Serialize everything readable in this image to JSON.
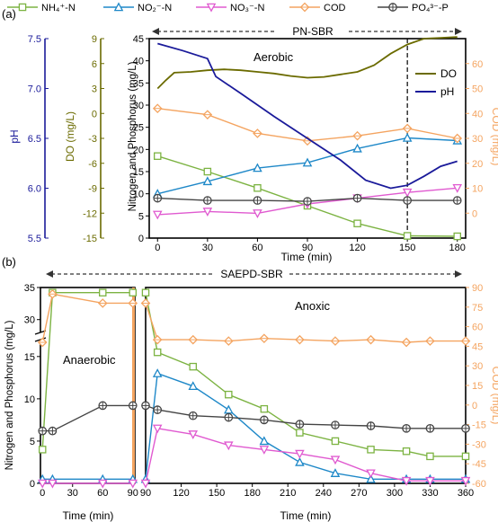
{
  "legend": {
    "items": [
      {
        "label": "NH₄⁺-N",
        "color": "#7cb342",
        "marker": "square"
      },
      {
        "label": "NO₂⁻-N",
        "color": "#1e88c8",
        "marker": "triangle-up"
      },
      {
        "label": "NO₃⁻-N",
        "color": "#e05ad0",
        "marker": "triangle-down"
      },
      {
        "label": "COD",
        "color": "#f4a460",
        "marker": "diamond"
      },
      {
        "label": "PO₄³⁻-P",
        "color": "#444444",
        "marker": "circle-cross"
      }
    ]
  },
  "panel_a": {
    "label": "(a)",
    "banner": "PN-SBR",
    "phase": "Aerobic",
    "colors": {
      "DO": "#6b6b00",
      "pH": "#1a1a9a"
    },
    "chart_data": {
      "type": "line",
      "xlabel": "Time (min)",
      "ylabel": "Nitrogen and Phosphorus (mg/L)",
      "xlim": [
        -5,
        185
      ],
      "xticks": [
        0,
        30,
        60,
        90,
        120,
        150,
        180
      ],
      "ylim": [
        0,
        45
      ],
      "yticks": [
        0,
        5,
        10,
        15,
        20,
        25,
        30,
        35,
        40,
        45
      ],
      "vline_x": 150,
      "ylabel_right": "COD (mg/L)",
      "ylim_right": [
        -10,
        70
      ],
      "yticks_right": [
        0,
        10,
        20,
        30,
        40,
        50,
        60
      ],
      "ph_axis": {
        "label": "pH",
        "ylim": [
          5.5,
          7.5
        ],
        "ticks": [
          5.5,
          6.0,
          6.5,
          7.0,
          7.5
        ],
        "tick_labels": [
          "5.5",
          "6.0",
          "6.5",
          "7.0",
          "7.5"
        ]
      },
      "do_axis": {
        "label": "DO (mg/L)",
        "ylim": [
          -15,
          9
        ],
        "ticks": [
          -15,
          -12,
          -9,
          -6,
          -3,
          0,
          3,
          6,
          9
        ],
        "tick_labels": [
          "-15",
          "-12",
          "-9",
          "-6",
          "-3",
          "0",
          "3",
          "6",
          "9"
        ]
      },
      "series": [
        {
          "name": "NH₄⁺-N",
          "x": [
            0,
            30,
            60,
            90,
            120,
            150,
            180
          ],
          "y": [
            18.5,
            15,
            11.3,
            7.3,
            3.3,
            0.5,
            0.4
          ]
        },
        {
          "name": "NO₂⁻-N",
          "x": [
            0,
            30,
            60,
            90,
            120,
            150,
            180
          ],
          "y": [
            10,
            12.8,
            15.8,
            17,
            20.2,
            22.6,
            22
          ]
        },
        {
          "name": "NO₃⁻-N",
          "x": [
            0,
            30,
            60,
            90,
            120,
            150,
            180
          ],
          "y": [
            5.3,
            6,
            5.6,
            7.7,
            9,
            10.3,
            11.3
          ]
        },
        {
          "name": "COD",
          "x": [
            0,
            30,
            60,
            90,
            120,
            150,
            180
          ],
          "y_right": [
            42,
            39.5,
            32,
            29,
            31,
            34,
            30
          ]
        },
        {
          "name": "PO₄³⁻-P",
          "x": [
            0,
            30,
            60,
            90,
            120,
            150,
            180
          ],
          "y": [
            9,
            8.5,
            8.5,
            8.3,
            9,
            8.5,
            8.5
          ]
        },
        {
          "name": "DO",
          "x": [
            0,
            5,
            10,
            20,
            30,
            40,
            50,
            60,
            70,
            80,
            90,
            100,
            110,
            120,
            130,
            140,
            150,
            160,
            170,
            180
          ],
          "y_do": [
            3.0,
            4.0,
            4.9,
            5.0,
            5.2,
            5.3,
            5.2,
            5.0,
            4.8,
            4.5,
            4.3,
            4.4,
            4.7,
            5.0,
            5.8,
            7.2,
            8.3,
            9.0,
            9.1,
            9.2
          ]
        },
        {
          "name": "pH",
          "x": [
            0,
            15,
            30,
            35,
            50,
            70,
            90,
            110,
            125,
            140,
            150,
            160,
            170,
            180
          ],
          "y_ph": [
            7.45,
            7.38,
            7.3,
            7.12,
            6.95,
            6.72,
            6.5,
            6.28,
            6.08,
            6.0,
            6.03,
            6.12,
            6.22,
            6.27
          ]
        }
      ]
    }
  },
  "panel_b": {
    "label": "(b)",
    "banner": "SAEPD-SBR",
    "phase_left": "Anaerobic",
    "phase_right": "Anoxic",
    "chart_data": [
      {
        "type": "line",
        "xlabel": "Time (min)",
        "ylabel": "Nitrogen and Phosphorus (mg/L)",
        "xlim": [
          -2,
          92
        ],
        "xticks": [
          0,
          30,
          60,
          90
        ],
        "ylim": [
          0,
          35
        ],
        "yticks_lower": [
          0,
          5,
          10,
          15
        ],
        "yticks_upper": [
          30,
          35
        ],
        "break": [
          17,
          28
        ],
        "series": [
          {
            "name": "NH₄⁺-N",
            "x": [
              0,
              10,
              60,
              90
            ],
            "y": [
              4,
              34.2,
              34.2,
              34.2
            ]
          },
          {
            "name": "NO₂⁻-N",
            "x": [
              0,
              10,
              60,
              90
            ],
            "y": [
              0.5,
              0.5,
              0.5,
              0.5
            ]
          },
          {
            "name": "NO₃⁻-N",
            "x": [
              0,
              10,
              60,
              90
            ],
            "y": [
              0,
              0,
              0,
              0
            ]
          },
          {
            "name": "PO₄³⁻-P",
            "x": [
              0,
              10,
              60,
              90
            ],
            "y": [
              6.2,
              6.2,
              9.2,
              9.2
            ]
          },
          {
            "name": "COD",
            "x": [
              0,
              10,
              60,
              90
            ],
            "y_right": [
              48,
              85,
              78,
              78
            ]
          }
        ]
      },
      {
        "type": "line",
        "xlabel": "Time (min)",
        "ylabel_right": "COD (mg/L)",
        "xlim": [
          90,
          360
        ],
        "xticks": [
          90,
          120,
          150,
          180,
          210,
          240,
          270,
          300,
          330,
          360
        ],
        "ylim": [
          0,
          35
        ],
        "ylim_right": [
          -60,
          90
        ],
        "yticks_right": [
          -60,
          -45,
          -30,
          -15,
          0,
          15,
          30,
          45,
          60,
          75,
          90
        ],
        "series": [
          {
            "name": "NH₄⁺-N",
            "x": [
              90,
              100,
              130,
              160,
              190,
              220,
              250,
              280,
              310,
              330,
              360
            ],
            "y": [
              34.2,
              15.5,
              13.8,
              10.5,
              8.8,
              6,
              5,
              4,
              3.8,
              3.2,
              3.2
            ]
          },
          {
            "name": "NO₂⁻-N",
            "x": [
              90,
              100,
              130,
              160,
              190,
              220,
              250,
              280,
              310,
              330,
              360
            ],
            "y": [
              0.5,
              13,
              11.5,
              8.7,
              5,
              2.5,
              1.2,
              0.5,
              0.5,
              0.5,
              0.5
            ]
          },
          {
            "name": "NO₃⁻-N",
            "x": [
              90,
              100,
              130,
              160,
              190,
              220,
              250,
              280,
              310,
              330,
              360
            ],
            "y": [
              0,
              6.5,
              5.8,
              4.5,
              4,
              3.5,
              2.8,
              1.2,
              0.3,
              0.3,
              0.3
            ]
          },
          {
            "name": "PO₄³⁻-P",
            "x": [
              90,
              100,
              130,
              160,
              190,
              220,
              250,
              280,
              310,
              330,
              360
            ],
            "y": [
              9.2,
              8.7,
              8,
              7.8,
              7.5,
              7,
              6.9,
              6.8,
              6.5,
              6.5,
              6.5
            ]
          },
          {
            "name": "COD",
            "x": [
              90,
              100,
              130,
              160,
              190,
              220,
              250,
              280,
              310,
              330,
              360
            ],
            "y_right": [
              78,
              50,
              50,
              49,
              51,
              50,
              49,
              50,
              48,
              49,
              49
            ]
          }
        ]
      }
    ]
  }
}
